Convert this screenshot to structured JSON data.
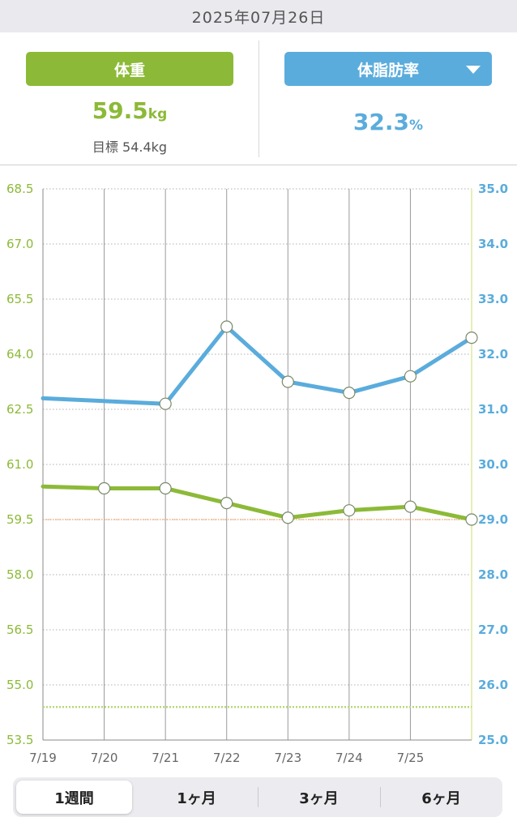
{
  "header": {
    "date": "2025年07月26日"
  },
  "summary": {
    "weight_button": "体重",
    "weight_value": "59.5",
    "weight_unit": "kg",
    "goal_label": "目標 54.4kg",
    "fat_button": "体脂肪率",
    "fat_value": "32.3",
    "fat_unit": "%"
  },
  "colors": {
    "weight": "#8cba38",
    "fat": "#5aacdc",
    "goal_line": "#f0a060",
    "target_line": "#b8d878"
  },
  "chart_data": {
    "type": "line",
    "x": [
      "7/19",
      "7/20",
      "7/21",
      "7/22",
      "7/23",
      "7/24",
      "7/25",
      "7/26"
    ],
    "x_tick_labels": [
      "7/19",
      "7/20",
      "7/21",
      "7/22",
      "7/23",
      "7/24",
      "7/25"
    ],
    "y_left": {
      "ylim": [
        53.5,
        68.5
      ],
      "ticks": [
        "68.5",
        "67.0",
        "65.5",
        "64.0",
        "62.5",
        "61.0",
        "59.5",
        "58.0",
        "56.5",
        "55.0",
        "53.5"
      ]
    },
    "y_right": {
      "ylim": [
        25.0,
        35.0
      ],
      "ticks": [
        "35.0",
        "34.0",
        "33.0",
        "32.0",
        "31.0",
        "30.0",
        "29.0",
        "28.0",
        "27.0",
        "26.0",
        "25.0"
      ]
    },
    "series": [
      {
        "axis": "left",
        "color": "#8cba38",
        "values": [
          60.4,
          60.35,
          60.35,
          59.95,
          59.55,
          59.75,
          59.85,
          59.5
        ],
        "markers": [
          false,
          true,
          true,
          true,
          true,
          true,
          true,
          true
        ]
      },
      {
        "axis": "right",
        "color": "#5aacdc",
        "values": [
          31.2,
          null,
          31.1,
          32.5,
          31.5,
          31.3,
          31.6,
          32.3
        ],
        "markers": [
          false,
          false,
          true,
          true,
          true,
          true,
          true,
          true
        ]
      }
    ],
    "reference_lines": [
      {
        "axis": "left",
        "value": 59.5,
        "style": "dotted",
        "color": "#f0a060"
      },
      {
        "axis": "left",
        "value": 54.4,
        "style": "dotted",
        "color": "#b8d878"
      }
    ],
    "grid": true
  },
  "tabs": [
    {
      "label": "1週間",
      "active": true
    },
    {
      "label": "1ヶ月",
      "active": false
    },
    {
      "label": "3ヶ月",
      "active": false
    },
    {
      "label": "6ヶ月",
      "active": false
    }
  ]
}
